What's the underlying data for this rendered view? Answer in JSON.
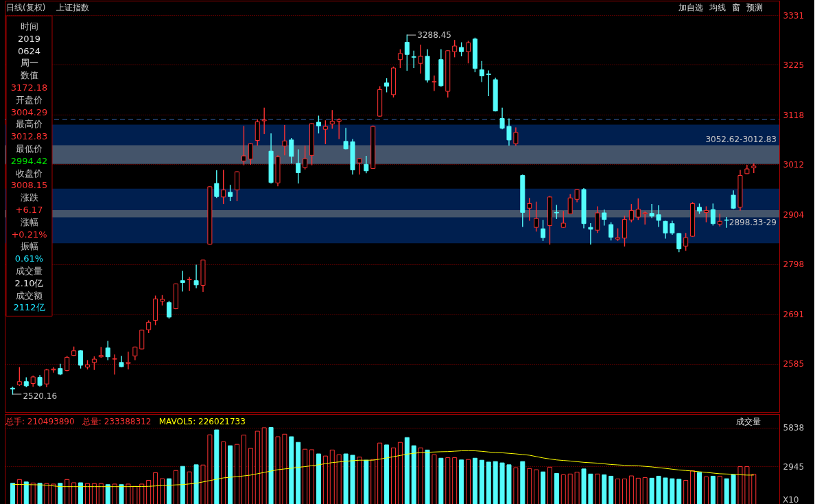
{
  "chart_data": [
    {
      "type": "candlestick",
      "title": "日线(复权)",
      "subtitle": "上证指数",
      "categories": [
        null,
        null,
        null,
        null,
        null,
        null,
        null,
        null,
        null,
        null,
        null,
        null,
        null,
        null,
        null,
        null,
        null,
        null,
        null,
        null,
        null,
        null,
        null,
        null,
        null,
        null,
        null,
        null,
        null,
        null,
        null,
        null,
        null,
        null,
        null,
        null,
        null,
        null,
        null,
        null,
        null,
        null,
        null,
        null,
        null,
        null,
        null,
        null,
        null,
        null,
        null,
        null,
        null,
        null,
        null,
        null,
        null,
        null,
        null,
        null,
        null,
        null,
        null,
        null,
        null,
        null,
        null,
        null,
        null,
        null,
        null,
        null,
        null,
        null,
        null,
        null,
        null,
        null,
        null,
        null,
        null,
        null,
        null,
        null,
        null,
        null,
        null,
        null,
        null,
        null,
        null,
        null,
        null,
        null,
        null,
        null,
        null,
        null,
        null,
        null,
        null,
        null,
        null,
        null,
        null,
        null,
        null,
        null,
        null,
        null
      ],
      "ohlc": [
        [
          2533,
          2535,
          2520.16,
          2531
        ],
        [
          2540,
          2577,
          2539,
          2547
        ],
        [
          2547,
          2555,
          2536,
          2538
        ],
        [
          2543,
          2559,
          2537,
          2557
        ],
        [
          2556,
          2560,
          2537,
          2539
        ],
        [
          2542,
          2573,
          2536,
          2572
        ],
        [
          2572,
          2577,
          2567,
          2574
        ],
        [
          2575,
          2584,
          2562,
          2563
        ],
        [
          2571,
          2601,
          2570,
          2599
        ],
        [
          2603,
          2621,
          2603,
          2613
        ],
        [
          2613,
          2613,
          2576,
          2582
        ],
        [
          2578,
          2592,
          2574,
          2583
        ],
        [
          2588,
          2600,
          2573,
          2595
        ],
        [
          2600,
          2620,
          2599,
          2603
        ],
        [
          2619,
          2633,
          2594,
          2600
        ],
        [
          2595,
          2604,
          2563,
          2596
        ],
        [
          2588,
          2601,
          2579,
          2579
        ],
        [
          2586,
          2610,
          2574,
          2588
        ],
        [
          2602,
          2621,
          2594,
          2621
        ],
        [
          2617,
          2657,
          2617,
          2657
        ],
        [
          2658,
          2677,
          2652,
          2674
        ],
        [
          2678,
          2730,
          2669,
          2724
        ],
        [
          2719,
          2731,
          2711,
          2723
        ],
        [
          2716,
          2719,
          2683,
          2685
        ],
        [
          2703,
          2756,
          2703,
          2756
        ],
        [
          2763,
          2783,
          2741,
          2759
        ],
        [
          2765,
          2770,
          2742,
          2766
        ],
        [
          2763,
          2796,
          2748,
          2754
        ],
        [
          2753,
          2807,
          2740,
          2807
        ],
        [
          2841,
          2964,
          2841,
          2964
        ],
        [
          2971,
          2998,
          2941,
          2943
        ],
        [
          2942,
          2999,
          2928,
          2957
        ],
        [
          2952,
          2967,
          2934,
          2943
        ],
        [
          2957,
          2996,
          2934,
          2996
        ],
        [
          3019,
          3093,
          3011,
          3030
        ],
        [
          3023,
          3056,
          3012,
          3056
        ],
        [
          3063,
          3107,
          3053,
          3103
        ],
        [
          3105,
          3132,
          3078,
          3107
        ],
        [
          3040,
          3077,
          2972,
          2973
        ],
        [
          2972,
          3030,
          2966,
          3028
        ],
        [
          3051,
          3095,
          3032,
          3062
        ],
        [
          3064,
          3067,
          3015,
          3029
        ],
        [
          3014,
          3043,
          2972,
          2994
        ],
        [
          3005,
          3051,
          3002,
          3024
        ],
        [
          3031,
          3099,
          3011,
          3099
        ],
        [
          3102,
          3115,
          3079,
          3094
        ],
        [
          3087,
          3105,
          3056,
          3093
        ],
        [
          3098,
          3127,
          3089,
          3104
        ],
        [
          3104,
          3109,
          3067,
          3107
        ],
        [
          3061,
          3089,
          3045,
          3045
        ],
        [
          3060,
          3065,
          2991,
          3000
        ],
        [
          3015,
          3024,
          2991,
          3024
        ],
        [
          3012,
          3029,
          2994,
          2998
        ],
        [
          3003,
          3094,
          3003,
          3093
        ],
        [
          3115,
          3178,
          3115,
          3172
        ],
        [
          3186,
          3195,
          3167,
          3179
        ],
        [
          3161,
          3220,
          3156,
          3218
        ],
        [
          3236,
          3257,
          3219,
          3249
        ],
        [
          3273,
          3288.45,
          3213,
          3247
        ],
        [
          3242,
          3254,
          3219,
          3241
        ],
        [
          3228,
          3267,
          3207,
          3243
        ],
        [
          3243,
          3257,
          3188,
          3192
        ],
        [
          3188,
          3201,
          3170,
          3189
        ],
        [
          3236,
          3257,
          3179,
          3180
        ],
        [
          3168,
          3255,
          3156,
          3255
        ],
        [
          3253,
          3277,
          3242,
          3265
        ],
        [
          3262,
          3272,
          3244,
          3253
        ],
        [
          3253,
          3275,
          3229,
          3272
        ],
        [
          3280,
          3282,
          3210,
          3217
        ],
        [
          3214,
          3232,
          3189,
          3201
        ],
        [
          3205,
          3212,
          3159,
          3204
        ],
        [
          3193,
          3196,
          3126,
          3126
        ],
        [
          3110,
          3132,
          3088,
          3089
        ],
        [
          3093,
          3109,
          3053,
          3064
        ],
        [
          3056,
          3090,
          3052.62,
          3080
        ],
        [
          2988,
          2989,
          2879,
          2909
        ],
        [
          2918,
          2939,
          2892,
          2928
        ],
        [
          2877,
          2931,
          2869,
          2896
        ],
        [
          2874,
          2892,
          2849,
          2855
        ],
        [
          2881,
          2943,
          2841,
          2942
        ],
        [
          2909,
          2924,
          2896,
          2908
        ],
        [
          2877,
          2911,
          2877,
          2886
        ],
        [
          2906,
          2947,
          2906,
          2940
        ],
        [
          2937,
          2958,
          2932,
          2958
        ],
        [
          2958,
          2960,
          2876,
          2885
        ],
        [
          2877,
          2885,
          2841,
          2873
        ],
        [
          2871,
          2921,
          2866,
          2908
        ],
        [
          2908,
          2914,
          2882,
          2894
        ],
        [
          2883,
          2887,
          2850,
          2856
        ],
        [
          2852,
          2874,
          2849,
          2855
        ],
        [
          2854,
          2901,
          2837,
          2894
        ],
        [
          2893,
          2926,
          2889,
          2913
        ],
        [
          2899,
          2938,
          2894,
          2916
        ],
        [
          2906,
          2910,
          2884,
          2908
        ],
        [
          2907,
          2926,
          2898,
          2901
        ],
        [
          2904,
          2923,
          2879,
          2892
        ],
        [
          2890,
          2890,
          2854,
          2865
        ],
        [
          2885,
          2890,
          2862,
          2865
        ],
        [
          2864,
          2864,
          2825,
          2831
        ],
        [
          2837,
          2864,
          2828,
          2855
        ],
        [
          2858,
          2930,
          2858,
          2928
        ],
        [
          2920,
          2927,
          2907,
          2912
        ],
        [
          2909,
          2921,
          2889,
          2913
        ],
        [
          2915,
          2927,
          2882,
          2885
        ],
        [
          2884,
          2905,
          2880,
          2890
        ],
        [
          2893,
          2898.33,
          2877,
          2892
        ],
        [
          2946,
          2955,
          2917,
          2918
        ],
        [
          2920,
          2999,
          2914,
          2988
        ],
        [
          2992,
          3010,
          2992,
          3002
        ],
        [
          3004.29,
          3012.83,
          2994.42,
          3008.15
        ]
      ],
      "colors": [
        "#54fcfc",
        "#ff3232",
        "#54fcfc",
        "#ff3232",
        "#54fcfc",
        "#ff3232",
        "#ff3232",
        "#54fcfc",
        "#ff3232",
        "#ff3232",
        "#54fcfc",
        "#ff3232",
        "#ff3232",
        "#ff3232",
        "#54fcfc",
        "#ff3232",
        "#54fcfc",
        "#ff3232",
        "#ff3232",
        "#ff3232",
        "#ff3232",
        "#ff3232",
        "#ff3232",
        "#54fcfc",
        "#ff3232",
        "#54fcfc",
        "#ff3232",
        "#54fcfc",
        "#ff3232",
        "#ff3232",
        "#54fcfc",
        "#ff3232",
        "#54fcfc",
        "#ff3232",
        "#ff3232",
        "#ff3232",
        "#ff3232",
        "#ff3232",
        "#54fcfc",
        "#ff3232",
        "#ff3232",
        "#54fcfc",
        "#54fcfc",
        "#ff3232",
        "#ff3232",
        "#54fcfc",
        "#ff3232",
        "#ff3232",
        "#ff3232",
        "#54fcfc",
        "#54fcfc",
        "#ff3232",
        "#54fcfc",
        "#ff3232",
        "#ff3232",
        "#54fcfc",
        "#ff3232",
        "#ff3232",
        "#54fcfc",
        "#54fcfc",
        "#ff3232",
        "#54fcfc",
        "#ff3232",
        "#54fcfc",
        "#ff3232",
        "#ff3232",
        "#54fcfc",
        "#ff3232",
        "#54fcfc",
        "#54fcfc",
        "#54fcfc",
        "#54fcfc",
        "#54fcfc",
        "#54fcfc",
        "#ff3232",
        "#54fcfc",
        "#ff3232",
        "#ff3232",
        "#54fcfc",
        "#ff3232",
        "#54fcfc",
        "#ff3232",
        "#ff3232",
        "#ff3232",
        "#54fcfc",
        "#54fcfc",
        "#ff3232",
        "#54fcfc",
        "#54fcfc",
        "#ff3232",
        "#ff3232",
        "#ff3232",
        "#ff3232",
        "#ff3232",
        "#54fcfc",
        "#54fcfc",
        "#54fcfc",
        "#54fcfc",
        "#54fcfc",
        "#ff3232",
        "#ff3232",
        "#54fcfc",
        "#ff3232",
        "#54fcfc",
        "#ff3232",
        "#54fcfc",
        "#54fcfc",
        "#ff3232",
        "#ff3232",
        "#ff3232"
      ],
      "ylim": [
        2482,
        3362
      ],
      "yticks": [
        2585,
        2691,
        2798,
        2904,
        3012,
        3118,
        3225,
        3331
      ],
      "grid": "y",
      "tick_labels": "y",
      "bands": [
        {
          "axis": "y",
          "from": 3014,
          "to": 3097,
          "color": "#001f4f"
        },
        {
          "axis": "y",
          "from": 2843,
          "to": 2960,
          "color": "#001f4f"
        },
        {
          "axis": "y",
          "from": 3012.83,
          "to": 3052.62,
          "label": "3052.62-3012.83",
          "color": "#44546a"
        },
        {
          "axis": "y",
          "from": 2898.33,
          "to": 2914,
          "label": "2898.33-29",
          "color": "#44546a"
        }
      ],
      "ref_lines": [
        {
          "axis": "y",
          "value": 3108,
          "line_style": "dashed",
          "color": "#3a66b0"
        }
      ],
      "annotations": [
        "3288.45",
        "2520.16",
        "加自选",
        "均线",
        "窗",
        "预测"
      ]
    },
    {
      "type": "other",
      "annotations": [
        "时间",
        "2019",
        "0624",
        "周一",
        "数值",
        "3172.18",
        "开盘价",
        "3004.29",
        "最高价",
        "3012.83",
        "最低价",
        "2994.42",
        "收盘价",
        "3008.15",
        "涨跌",
        "+6.17",
        "涨幅",
        "+0.21%",
        "振幅",
        "0.61%",
        "成交量",
        "2.10亿",
        "成交额",
        "2112亿"
      ],
      "colors": [
        "#c0c0c0",
        "#e0e0e0",
        "#e0e0e0",
        "#e0e0e0",
        "#c0c0c0",
        "#ff3232",
        "#c0c0c0",
        "#ff3232",
        "#c0c0c0",
        "#ff3232",
        "#c0c0c0",
        "#00e600",
        "#c0c0c0",
        "#ff3232",
        "#c0c0c0",
        "#ff3232",
        "#c0c0c0",
        "#ff3232",
        "#c0c0c0",
        "#1ee6ff",
        "#c0c0c0",
        "#e0e0e0",
        "#c0c0c0",
        "#1ee6ff"
      ]
    },
    {
      "type": "bar",
      "title": "成交量",
      "categories": [
        null,
        null,
        null,
        null,
        null,
        null,
        null,
        null,
        null,
        null,
        null,
        null,
        null,
        null,
        null,
        null,
        null,
        null,
        null,
        null,
        null,
        null,
        null,
        null,
        null,
        null,
        null,
        null,
        null,
        null,
        null,
        null,
        null,
        null,
        null,
        null,
        null,
        null,
        null,
        null,
        null,
        null,
        null,
        null,
        null,
        null,
        null,
        null,
        null,
        null,
        null,
        null,
        null,
        null,
        null,
        null,
        null,
        null,
        null,
        null,
        null,
        null,
        null,
        null,
        null,
        null,
        null,
        null,
        null,
        null,
        null,
        null,
        null,
        null,
        null,
        null,
        null,
        null,
        null,
        null,
        null,
        null,
        null,
        null,
        null,
        null,
        null,
        null,
        null,
        null,
        null,
        null,
        null,
        null,
        null,
        null,
        null,
        null,
        null,
        null,
        null,
        null,
        null,
        null,
        null,
        null,
        null,
        null,
        null,
        null
      ],
      "series": [
        {
          "type": "bar",
          "values": [
            1700,
            1980,
            1800,
            1720,
            1700,
            1680,
            1640,
            1700,
            1980,
            1740,
            1740,
            1680,
            1680,
            1680,
            1600,
            1640,
            1600,
            1640,
            1470,
            1640,
            1920,
            2490,
            2040,
            2040,
            2650,
            2960,
            2550,
            3080,
            3060,
            5310,
            5680,
            4790,
            4500,
            4600,
            5290,
            4300,
            5580,
            5840,
            5860,
            5170,
            5360,
            5170,
            4750,
            4240,
            4200,
            3890,
            3730,
            4180,
            3830,
            3890,
            3790,
            3650,
            3420,
            3470,
            4700,
            4560,
            4340,
            4750,
            5110,
            4500,
            4340,
            4180,
            3830,
            3570,
            3610,
            3610,
            3440,
            3470,
            3570,
            3420,
            3280,
            3320,
            3220,
            3080,
            2860,
            3320,
            2800,
            2710,
            2550,
            2900,
            2430,
            2330,
            2390,
            2530,
            2770,
            2390,
            2390,
            2330,
            2230,
            2020,
            2020,
            2250,
            2080,
            2120,
            2080,
            2230,
            2100,
            2040,
            2000,
            1920,
            2630,
            2510,
            2180,
            2230,
            2230,
            2040,
            2330,
            2940,
            2940,
            2370
          ],
          "colors": [
            "#54fcfc",
            "#ff3232",
            "#54fcfc",
            "#ff3232",
            "#54fcfc",
            "#ff3232",
            "#ff3232",
            "#54fcfc",
            "#ff3232",
            "#ff3232",
            "#54fcfc",
            "#ff3232",
            "#ff3232",
            "#ff3232",
            "#54fcfc",
            "#ff3232",
            "#54fcfc",
            "#ff3232",
            "#ff3232",
            "#ff3232",
            "#ff3232",
            "#ff3232",
            "#ff3232",
            "#54fcfc",
            "#ff3232",
            "#54fcfc",
            "#ff3232",
            "#54fcfc",
            "#ff3232",
            "#ff3232",
            "#54fcfc",
            "#ff3232",
            "#54fcfc",
            "#ff3232",
            "#ff3232",
            "#ff3232",
            "#ff3232",
            "#ff3232",
            "#54fcfc",
            "#ff3232",
            "#ff3232",
            "#54fcfc",
            "#54fcfc",
            "#ff3232",
            "#ff3232",
            "#54fcfc",
            "#ff3232",
            "#ff3232",
            "#ff3232",
            "#54fcfc",
            "#54fcfc",
            "#ff3232",
            "#54fcfc",
            "#ff3232",
            "#ff3232",
            "#54fcfc",
            "#ff3232",
            "#ff3232",
            "#54fcfc",
            "#54fcfc",
            "#ff3232",
            "#54fcfc",
            "#ff3232",
            "#54fcfc",
            "#ff3232",
            "#ff3232",
            "#54fcfc",
            "#ff3232",
            "#54fcfc",
            "#54fcfc",
            "#54fcfc",
            "#54fcfc",
            "#54fcfc",
            "#54fcfc",
            "#ff3232",
            "#54fcfc",
            "#ff3232",
            "#ff3232",
            "#54fcfc",
            "#ff3232",
            "#54fcfc",
            "#ff3232",
            "#ff3232",
            "#ff3232",
            "#54fcfc",
            "#54fcfc",
            "#ff3232",
            "#54fcfc",
            "#54fcfc",
            "#ff3232",
            "#ff3232",
            "#ff3232",
            "#ff3232",
            "#ff3232",
            "#54fcfc",
            "#54fcfc",
            "#54fcfc",
            "#54fcfc",
            "#54fcfc",
            "#ff3232",
            "#ff3232",
            "#54fcfc",
            "#ff3232",
            "#54fcfc",
            "#ff3232",
            "#54fcfc",
            "#54fcfc",
            "#ff3232",
            "#ff3232",
            "#ff3232"
          ]
        },
        {
          "type": "line",
          "name": "MAVOL5: 226021733",
          "color": "#ffff00",
          "values": [
            1620,
            1610,
            1600,
            1590,
            1580,
            1560,
            1500,
            1450,
            1450,
            1450,
            1450,
            1450,
            1450,
            1450,
            1450,
            1450,
            1450,
            1450,
            1460,
            1460,
            1470,
            1500,
            1530,
            1550,
            1580,
            1600,
            1650,
            1700,
            1800,
            1900,
            2000,
            2100,
            2150,
            2190,
            2250,
            2310,
            2410,
            2510,
            2610,
            2710,
            2770,
            2820,
            2890,
            2940,
            3010,
            3080,
            3160,
            3240,
            3290,
            3340,
            3380,
            3420,
            3420,
            3420,
            3500,
            3590,
            3680,
            3770,
            3870,
            3930,
            3990,
            4010,
            4030,
            4050,
            4060,
            4090,
            4120,
            4120,
            4120,
            4080,
            4030,
            3990,
            3970,
            3930,
            3890,
            3840,
            3790,
            3690,
            3590,
            3510,
            3440,
            3400,
            3360,
            3310,
            3260,
            3230,
            3200,
            3150,
            3100,
            3070,
            3040,
            3020,
            3000,
            2960,
            2920,
            2860,
            2810,
            2750,
            2690,
            2650,
            2610,
            2560,
            2510,
            2460,
            2410,
            2390,
            2370,
            2330,
            2310,
            2310
          ]
        }
      ],
      "ylim": [
        0,
        6860
      ],
      "yticks": [
        2945,
        5838
      ],
      "ylabel": "X10",
      "grid": "y",
      "tick_labels": "y",
      "legend": "top left",
      "annotations": [
        "总手: 210493890",
        "总量: 233388312"
      ]
    }
  ]
}
